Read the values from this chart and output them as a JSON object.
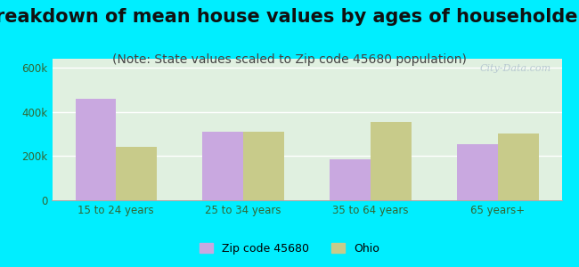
{
  "title": "Breakdown of mean house values by ages of householders",
  "subtitle": "(Note: State values scaled to Zip code 45680 population)",
  "categories": [
    "15 to 24 years",
    "25 to 34 years",
    "35 to 64 years",
    "65 years+"
  ],
  "zip_values": [
    460000,
    310000,
    185000,
    255000
  ],
  "ohio_values": [
    240000,
    310000,
    355000,
    300000
  ],
  "zip_color": "#c9a8e0",
  "ohio_color": "#c8cb8a",
  "background_outer": "#00eeff",
  "background_inner": "#e0f0e0",
  "ylim": [
    0,
    640000
  ],
  "yticks": [
    0,
    200000,
    400000,
    600000
  ],
  "ytick_labels": [
    "0",
    "200k",
    "400k",
    "600k"
  ],
  "legend_zip": "Zip code 45680",
  "legend_ohio": "Ohio",
  "bar_width": 0.32,
  "title_fontsize": 15,
  "subtitle_fontsize": 10,
  "title_color": "#111111",
  "subtitle_color": "#444444",
  "tick_color": "#336633",
  "watermark": "City-Data.com"
}
